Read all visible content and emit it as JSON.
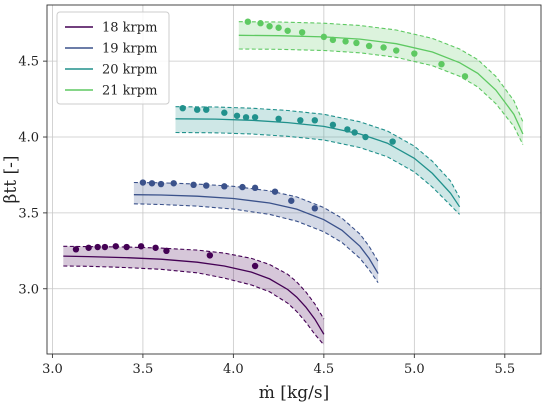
{
  "chart_data": {
    "type": "line",
    "xlabel": "ṁ [kg/s]",
    "ylabel": "βtt [-]",
    "xlim": [
      2.97,
      5.7
    ],
    "ylim": [
      2.57,
      4.87
    ],
    "xticks": [
      3.0,
      3.5,
      4.0,
      4.5,
      5.0,
      5.5
    ],
    "xtick_labels": [
      "3.0",
      "3.5",
      "4.0",
      "4.5",
      "5.0",
      "5.5"
    ],
    "yticks": [
      3.0,
      3.5,
      4.0,
      4.5
    ],
    "ytick_labels": [
      "3.0",
      "3.5",
      "4.0",
      "4.5"
    ],
    "grid": true,
    "legend_position": "top-left",
    "series": [
      {
        "name": "18 krpm",
        "color": "#440154",
        "fill": "#440154",
        "curve": {
          "x": [
            3.06,
            3.2,
            3.4,
            3.6,
            3.8,
            3.95,
            4.1,
            4.2,
            4.3,
            4.35,
            4.4,
            4.45,
            4.5
          ],
          "y": [
            3.215,
            3.212,
            3.205,
            3.195,
            3.175,
            3.15,
            3.11,
            3.065,
            2.995,
            2.945,
            2.88,
            2.8,
            2.7
          ]
        },
        "upper": {
          "x": [
            3.06,
            3.2,
            3.4,
            3.6,
            3.8,
            3.95,
            4.1,
            4.2,
            4.3,
            4.35,
            4.4,
            4.45,
            4.5
          ],
          "y": [
            3.28,
            3.278,
            3.275,
            3.268,
            3.255,
            3.235,
            3.2,
            3.16,
            3.095,
            3.045,
            2.98,
            2.9,
            2.8
          ]
        },
        "lower": {
          "x": [
            3.06,
            3.2,
            3.4,
            3.6,
            3.8,
            3.95,
            4.1,
            4.2,
            4.3,
            4.35,
            4.4,
            4.45,
            4.5
          ],
          "y": [
            3.15,
            3.148,
            3.14,
            3.128,
            3.105,
            3.07,
            3.025,
            2.98,
            2.905,
            2.85,
            2.78,
            2.7,
            2.63
          ]
        },
        "points": {
          "x": [
            3.13,
            3.2,
            3.25,
            3.29,
            3.35,
            3.41,
            3.49,
            3.57,
            3.63,
            3.87,
            4.12
          ],
          "y": [
            3.26,
            3.27,
            3.275,
            3.275,
            3.28,
            3.275,
            3.28,
            3.27,
            3.25,
            3.22,
            3.15
          ]
        }
      },
      {
        "name": "19 krpm",
        "color": "#3b528b",
        "fill": "#3b528b",
        "curve": {
          "x": [
            3.45,
            3.6,
            3.8,
            4.0,
            4.2,
            4.35,
            4.5,
            4.6,
            4.7,
            4.75,
            4.8
          ],
          "y": [
            3.62,
            3.618,
            3.61,
            3.595,
            3.565,
            3.525,
            3.455,
            3.385,
            3.28,
            3.2,
            3.1
          ]
        },
        "upper": {
          "x": [
            3.45,
            3.6,
            3.8,
            4.0,
            4.2,
            4.35,
            4.5,
            4.6,
            4.7,
            4.75,
            4.8
          ],
          "y": [
            3.7,
            3.698,
            3.69,
            3.675,
            3.645,
            3.605,
            3.535,
            3.465,
            3.36,
            3.28,
            3.18
          ]
        },
        "lower": {
          "x": [
            3.45,
            3.6,
            3.8,
            4.0,
            4.2,
            4.35,
            4.5,
            4.6,
            4.7,
            4.75,
            4.8
          ],
          "y": [
            3.56,
            3.555,
            3.545,
            3.525,
            3.49,
            3.445,
            3.375,
            3.305,
            3.2,
            3.125,
            3.04
          ]
        },
        "points": {
          "x": [
            3.5,
            3.55,
            3.6,
            3.67,
            3.78,
            3.85,
            3.95,
            4.05,
            4.12,
            4.23,
            4.32,
            4.45
          ],
          "y": [
            3.7,
            3.695,
            3.69,
            3.695,
            3.685,
            3.68,
            3.675,
            3.67,
            3.665,
            3.64,
            3.58,
            3.53
          ]
        }
      },
      {
        "name": "20 krpm",
        "color": "#21918c",
        "fill": "#21918c",
        "curve": {
          "x": [
            3.68,
            3.9,
            4.1,
            4.3,
            4.5,
            4.7,
            4.85,
            5.0,
            5.1,
            5.2,
            5.25
          ],
          "y": [
            4.12,
            4.118,
            4.11,
            4.095,
            4.07,
            4.02,
            3.96,
            3.86,
            3.76,
            3.63,
            3.54
          ]
        },
        "upper": {
          "x": [
            3.68,
            3.9,
            4.1,
            4.3,
            4.5,
            4.7,
            4.85,
            5.0,
            5.1,
            5.2,
            5.25
          ],
          "y": [
            4.2,
            4.198,
            4.19,
            4.175,
            4.15,
            4.1,
            4.04,
            3.94,
            3.84,
            3.71,
            3.6
          ]
        },
        "lower": {
          "x": [
            3.68,
            3.9,
            4.1,
            4.3,
            4.5,
            4.7,
            4.85,
            5.0,
            5.1,
            5.2,
            5.25
          ],
          "y": [
            4.03,
            4.028,
            4.02,
            4.005,
            3.98,
            3.93,
            3.87,
            3.77,
            3.67,
            3.55,
            3.49
          ]
        },
        "points": {
          "x": [
            3.72,
            3.8,
            3.85,
            3.95,
            4.02,
            4.07,
            4.12,
            4.25,
            4.37,
            4.45,
            4.55,
            4.63,
            4.67,
            4.73,
            4.88
          ],
          "y": [
            4.19,
            4.18,
            4.18,
            4.16,
            4.14,
            4.13,
            4.13,
            4.12,
            4.11,
            4.11,
            4.08,
            4.05,
            4.03,
            4.0,
            3.97
          ]
        }
      },
      {
        "name": "21 krpm",
        "color": "#5ec962",
        "fill": "#5ec962",
        "curve": {
          "x": [
            4.03,
            4.25,
            4.5,
            4.7,
            4.9,
            5.1,
            5.25,
            5.35,
            5.45,
            5.55,
            5.6
          ],
          "y": [
            4.67,
            4.668,
            4.66,
            4.645,
            4.615,
            4.56,
            4.49,
            4.42,
            4.31,
            4.15,
            4.02
          ]
        },
        "upper": {
          "x": [
            4.03,
            4.25,
            4.5,
            4.7,
            4.9,
            5.1,
            5.25,
            5.35,
            5.45,
            5.55,
            5.6
          ],
          "y": [
            4.76,
            4.758,
            4.75,
            4.735,
            4.705,
            4.65,
            4.58,
            4.51,
            4.4,
            4.24,
            4.1
          ]
        },
        "lower": {
          "x": [
            4.03,
            4.25,
            4.5,
            4.7,
            4.9,
            5.1,
            5.25,
            5.35,
            5.45,
            5.55,
            5.6
          ],
          "y": [
            4.58,
            4.578,
            4.57,
            4.555,
            4.525,
            4.47,
            4.4,
            4.33,
            4.22,
            4.07,
            3.95
          ]
        },
        "points": {
          "x": [
            4.08,
            4.15,
            4.2,
            4.25,
            4.3,
            4.38,
            4.5,
            4.55,
            4.62,
            4.68,
            4.75,
            4.83,
            4.9,
            5.0,
            5.15,
            5.28
          ],
          "y": [
            4.76,
            4.75,
            4.73,
            4.72,
            4.7,
            4.69,
            4.66,
            4.64,
            4.63,
            4.62,
            4.6,
            4.59,
            4.57,
            4.55,
            4.48,
            4.4
          ]
        }
      }
    ]
  }
}
